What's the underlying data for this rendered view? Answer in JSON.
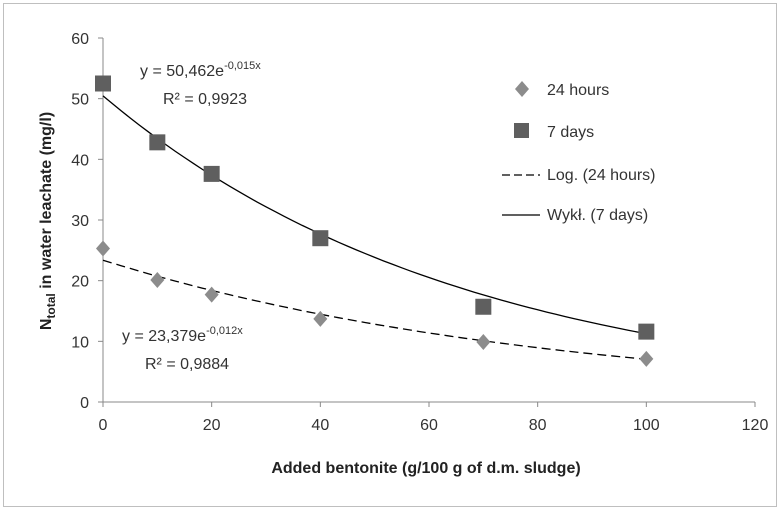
{
  "chart_data": {
    "type": "scatter",
    "xlabel": "Added bentonite (g/100 g of d.m. sludge)",
    "ylabel": {
      "main": "N",
      "sub": "total",
      "rest": " in water leachate (mg/l)"
    },
    "xlim": [
      0,
      120
    ],
    "ylim": [
      0,
      60
    ],
    "xticks": [
      "0",
      "20",
      "40",
      "60",
      "80",
      "100",
      "120"
    ],
    "yticks": [
      "0",
      "10",
      "20",
      "30",
      "40",
      "50",
      "60"
    ],
    "grid": false,
    "legend_position": "top-right",
    "series": [
      {
        "name": "24 hours",
        "marker": "diamond",
        "color": "#8c8c8c",
        "x": [
          0,
          10,
          20,
          40,
          70,
          100
        ],
        "y": [
          25.3,
          20.1,
          17.7,
          13.7,
          9.9,
          7.1
        ]
      },
      {
        "name": "7 days",
        "marker": "square",
        "color": "#5f5f5f",
        "x": [
          0,
          10,
          20,
          40,
          70,
          100
        ],
        "y": [
          52.5,
          42.8,
          37.6,
          27.0,
          15.7,
          11.6
        ]
      }
    ],
    "trendlines": [
      {
        "name": "Log. (24 hours)",
        "style": "dashed",
        "a": 23.379,
        "b": -0.012,
        "x_range": [
          0,
          100
        ],
        "equation": {
          "prefix": "y = 23,379e",
          "exponent": "-0,012x"
        },
        "r2_label": "R² = 0,9884"
      },
      {
        "name": "Wykł. (7 days)",
        "style": "solid",
        "a": 50.462,
        "b": -0.015,
        "x_range": [
          0,
          100
        ],
        "equation": {
          "prefix": "y = 50,462e",
          "exponent": "-0,015x"
        },
        "r2_label": "R² = 0,9923"
      }
    ],
    "legend": [
      "24 hours",
      "7 days",
      "Log. (24 hours)",
      "Wykł. (7 days)"
    ]
  }
}
